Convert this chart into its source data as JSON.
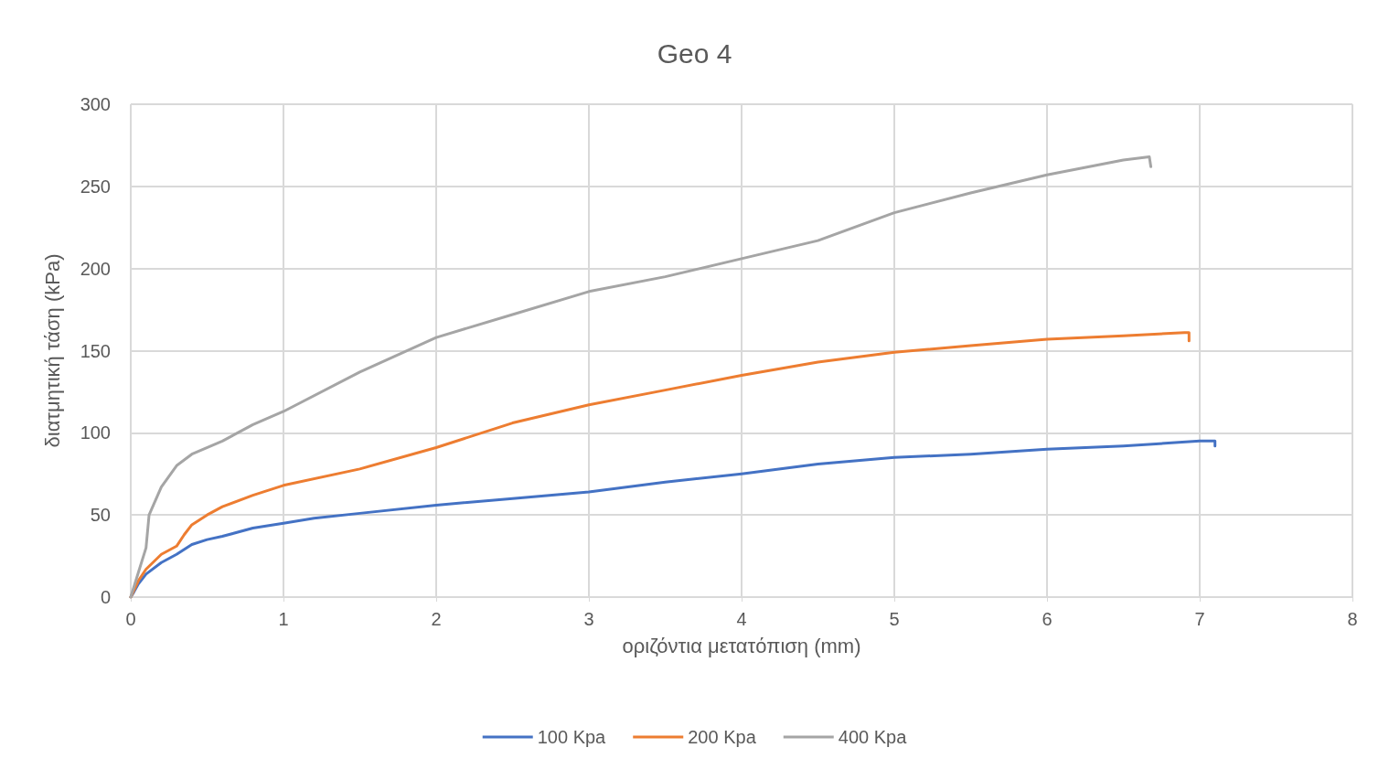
{
  "chart_data": {
    "type": "line",
    "title": "Geo 4",
    "xlabel": "οριζόντια μετατόπιση (mm)",
    "ylabel": "διατμητική τάση (kPa)",
    "xlim": [
      0,
      8
    ],
    "xticks": [
      0,
      1,
      2,
      3,
      4,
      5,
      6,
      7,
      8
    ],
    "ylim": [
      0,
      300
    ],
    "yticks": [
      0,
      50,
      100,
      150,
      200,
      250,
      300
    ],
    "grid": true,
    "legend": "bottom",
    "marker": "none",
    "line_style": "solid",
    "series": [
      {
        "name": "100 Kpa",
        "color": "#4472c4",
        "x": [
          0,
          0.02,
          0.05,
          0.1,
          0.2,
          0.3,
          0.4,
          0.5,
          0.6,
          0.8,
          1,
          1.2,
          1.5,
          2,
          2.5,
          3,
          3.5,
          4,
          4.5,
          5,
          5.5,
          6,
          6.5,
          7,
          7.1,
          7.1
        ],
        "values": [
          0,
          3,
          8,
          14,
          21,
          26,
          32,
          35,
          37,
          42,
          45,
          48,
          51,
          56,
          60,
          64,
          70,
          75,
          81,
          85,
          87,
          90,
          92,
          95,
          95,
          92
        ]
      },
      {
        "name": "200 Kpa",
        "color": "#ed7d31",
        "x": [
          0,
          0.05,
          0.1,
          0.2,
          0.3,
          0.35,
          0.4,
          0.5,
          0.6,
          0.8,
          1,
          1.5,
          2,
          2.5,
          3,
          3.5,
          4,
          4.5,
          5,
          5.5,
          6,
          6.5,
          6.9,
          6.93,
          6.93
        ],
        "values": [
          0,
          10,
          17,
          26,
          31,
          38,
          44,
          50,
          55,
          62,
          68,
          78,
          91,
          106,
          117,
          126,
          135,
          143,
          149,
          153,
          157,
          159,
          161,
          161,
          156
        ]
      },
      {
        "name": "400 Kpa",
        "color": "#a5a5a5",
        "x": [
          0,
          0.05,
          0.1,
          0.12,
          0.2,
          0.3,
          0.4,
          0.6,
          0.8,
          1,
          1.5,
          2,
          2.5,
          3,
          3.5,
          4,
          4.5,
          5,
          5.5,
          6,
          6.5,
          6.67,
          6.68
        ],
        "values": [
          0,
          15,
          30,
          50,
          67,
          80,
          87,
          95,
          105,
          113,
          137,
          158,
          172,
          186,
          195,
          206,
          217,
          234,
          246,
          257,
          266,
          268,
          262
        ]
      }
    ]
  }
}
